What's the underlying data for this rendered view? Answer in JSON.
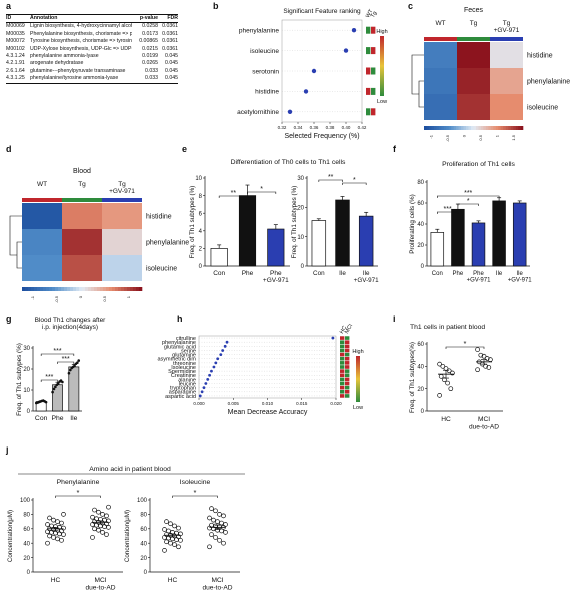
{
  "panel_letters": [
    "a",
    "b",
    "c",
    "d",
    "e",
    "f",
    "g",
    "h",
    "i",
    "j"
  ],
  "table_a": {
    "headers": [
      "ID",
      "Annotation",
      "p-value",
      "FDR"
    ],
    "rows": [
      [
        "M00069",
        "Lignin biosynthesis, 4-hydroxycinnamyl alcohol => lignin",
        "0.0258",
        "0.0361"
      ],
      [
        "M00035",
        "Phenylalanine biosynthesis, chorismate => phenylalanine",
        "0.0173",
        "0.0361"
      ],
      [
        "M00072",
        "Tyrosine biosynthesis, chorismate => tyrosine",
        "0.00865",
        "0.0361"
      ],
      [
        "M00102",
        "UDP-Xylose biosynthesis, UDP-Glc => UDP-Xyl => Xyl",
        "0.0215",
        "0.0361"
      ],
      [
        "4.3.1.24",
        "phenylalanine ammonia-lyase",
        "0.0199",
        "0.045"
      ],
      [
        "4.2.1.91",
        "arogenate dehydratase",
        "0.0265",
        "0.045"
      ],
      [
        "2.6.1.64",
        "glutamine---phenylpyruvate transaminase",
        "0.033",
        "0.045"
      ],
      [
        "4.3.1.25",
        "phenylalanine/tyrosine ammonia-lyase",
        "0.033",
        "0.045"
      ]
    ]
  },
  "colors": {
    "black": "#111111",
    "blue": "#2a3eb1",
    "gray": "#bbbbbb",
    "green": "#2e8b3c",
    "red": "#c0262c",
    "heat_high": "#8b1a1a",
    "heat_low": "#1f5c9e"
  },
  "chart_data": [
    {
      "id": "b",
      "type": "scatter",
      "title": "Significant Feature ranking",
      "xlabel": "Selected Frequency (%)",
      "categories": [
        "phenylalanine",
        "isoleucine",
        "serotonin",
        "histidine",
        "acetylornithine"
      ],
      "values": [
        0.41,
        0.4,
        0.36,
        0.35,
        0.33
      ],
      "xticks": [
        "0.32",
        "0.34",
        "0.36",
        "0.38",
        "0.40",
        "0.42"
      ],
      "xlim": [
        0.32,
        0.42
      ],
      "side_columns": [
        "WT",
        "Tg"
      ],
      "side_colors": [
        [
          "green",
          "red"
        ],
        [
          "green",
          "red"
        ],
        [
          "red",
          "green"
        ],
        [
          "red",
          "green"
        ],
        [
          "green",
          "red"
        ]
      ],
      "legend": {
        "high": "High",
        "low": "Low"
      }
    },
    {
      "id": "c",
      "type": "heatmap",
      "title": "Feces",
      "columns": [
        "WT",
        "Tg",
        "Tg\n+GV-971"
      ],
      "column_bar_colors": [
        "#c0262c",
        "#2e8b3c",
        "#2a3eb1"
      ],
      "rows": [
        "histidine",
        "phenylalanine",
        "isoleucine"
      ],
      "values": [
        [
          -1.0,
          1.6,
          0.1
        ],
        [
          -1.1,
          1.5,
          0.6
        ],
        [
          -1.2,
          1.4,
          0.8
        ]
      ],
      "colorbar_ticks": [
        "-1",
        "-0.5",
        "0",
        "0.5",
        "1",
        "1.5"
      ]
    },
    {
      "id": "d",
      "type": "heatmap",
      "title": "Blood",
      "columns": [
        "WT",
        "Tg",
        "Tg\n+GV-971"
      ],
      "column_bar_colors": [
        "#c0262c",
        "#2e8b3c",
        "#2a3eb1"
      ],
      "rows": [
        "histidine",
        "phenylalanine",
        "isoleucine"
      ],
      "values": [
        [
          -1.5,
          0.9,
          0.7
        ],
        [
          -0.9,
          1.4,
          0.2
        ],
        [
          -0.8,
          1.2,
          -0.2
        ]
      ],
      "colorbar_ticks": [
        "-1",
        "-0.5",
        "0",
        "0.5",
        "1"
      ]
    },
    {
      "id": "e1",
      "type": "bar",
      "title": "Differentiation of Th0 cells to Th1 cells",
      "ylabel": "Freq. of Th1 subtypes (%)",
      "categories": [
        "Con",
        "Phe",
        "Phe\n+GV-971"
      ],
      "values": [
        2,
        8,
        4.2
      ],
      "errors": [
        0.4,
        1.2,
        0.5
      ],
      "bar_colors": [
        "white",
        "black",
        "blue"
      ],
      "ylim": [
        0,
        10
      ],
      "yticks": [
        "0",
        "2",
        "4",
        "6",
        "8",
        "10"
      ],
      "significance": [
        {
          "from": 0,
          "to": 1,
          "label": "**"
        },
        {
          "from": 1,
          "to": 2,
          "label": "*"
        }
      ]
    },
    {
      "id": "e2",
      "type": "bar",
      "ylabel": "Freq. of Th1 subtypes (%)",
      "categories": [
        "Con",
        "Ile",
        "Ile\n+GV-971"
      ],
      "values": [
        15.5,
        22.5,
        17
      ],
      "errors": [
        0.6,
        1.2,
        1.3
      ],
      "bar_colors": [
        "white",
        "black",
        "blue"
      ],
      "ylim": [
        0,
        30
      ],
      "yticks": [
        "0",
        "10",
        "20",
        "30"
      ],
      "significance": [
        {
          "from": 0,
          "to": 1,
          "label": "**"
        },
        {
          "from": 1,
          "to": 2,
          "label": "*"
        }
      ]
    },
    {
      "id": "f",
      "type": "bar",
      "title": "Proliferation of Th1 cells",
      "ylabel": "Proliferating cells (%)",
      "categories": [
        "Con",
        "Phe",
        "Phe\n+GV-971",
        "Ile",
        "Ile\n+GV-971"
      ],
      "values": [
        32,
        54,
        41,
        62,
        60
      ],
      "errors": [
        3,
        5,
        2,
        3,
        2
      ],
      "bar_colors": [
        "white",
        "black",
        "blue",
        "black",
        "blue"
      ],
      "ylim": [
        0,
        80
      ],
      "yticks": [
        "0",
        "20",
        "40",
        "60",
        "80"
      ],
      "significance": [
        {
          "from": 0,
          "to": 1,
          "label": "***"
        },
        {
          "from": 1,
          "to": 2,
          "label": "*"
        },
        {
          "from": 0,
          "to": 3,
          "label": "***"
        }
      ]
    },
    {
      "id": "g",
      "type": "bar",
      "title": "Blood Th1 changes after\ni.p. injection(4days)",
      "ylabel": "Freq. of Th1 subtypes (%)",
      "categories": [
        "Con",
        "Phe",
        "Ile"
      ],
      "values": [
        4.5,
        12.5,
        21
      ],
      "errors": [
        0.4,
        1.2,
        1.2
      ],
      "points": [
        [
          3.8,
          4.0,
          4.3,
          4.5,
          4.8,
          5.0,
          4.6,
          4.2
        ],
        [
          9,
          10.5,
          11.5,
          12.5,
          13,
          14,
          14.5,
          13.8
        ],
        [
          18,
          19.5,
          20.5,
          21,
          21.5,
          22.5,
          23,
          24
        ]
      ],
      "bar_colors": [
        "white",
        "gray",
        "gray"
      ],
      "ylim": [
        0,
        30
      ],
      "yticks": [
        "0",
        "10",
        "20",
        "30"
      ],
      "significance": [
        {
          "from": 0,
          "to": 1,
          "label": "***"
        },
        {
          "from": 1,
          "to": 2,
          "label": "***"
        },
        {
          "from": 0,
          "to": 2,
          "label": "***"
        }
      ]
    },
    {
      "id": "h",
      "type": "scatter",
      "xlabel": "Mean Decrease Accuracy",
      "categories": [
        "citrulline",
        "phenylalanine",
        "glutamic acid",
        "serine",
        "glutamine",
        "asymmetric dim",
        "threonine",
        "Isoleucine",
        "Spermidine",
        "Creatinine",
        "alanine",
        "leucine",
        "tryptophan",
        "asparagine",
        "aspartic acid"
      ],
      "values": [
        0.0215,
        0.0045,
        0.0042,
        0.0038,
        0.0035,
        0.003,
        0.0027,
        0.0024,
        0.002,
        0.0017,
        0.0014,
        0.0011,
        0.0008,
        0.0005,
        0.0002
      ],
      "xticks": [
        "0.000",
        "0.005",
        "0.010",
        "0.015",
        "0.020"
      ],
      "xlim": [
        0,
        0.022
      ],
      "side_columns": [
        "HC",
        "MCI"
      ],
      "side_colors": [
        [
          "red",
          "green"
        ],
        [
          "green",
          "red"
        ],
        [
          "green",
          "red"
        ],
        [
          "green",
          "red"
        ],
        [
          "red",
          "green"
        ],
        [
          "green",
          "red"
        ],
        [
          "green",
          "red"
        ],
        [
          "green",
          "red"
        ],
        [
          "red",
          "green"
        ],
        [
          "red",
          "green"
        ],
        [
          "green",
          "red"
        ],
        [
          "green",
          "red"
        ],
        [
          "red",
          "green"
        ],
        [
          "green",
          "red"
        ],
        [
          "red",
          "green"
        ]
      ],
      "legend": {
        "high": "High",
        "low": "Low"
      }
    },
    {
      "id": "i",
      "type": "scatter",
      "title": "Th1 cells in patient blood",
      "ylabel": "Freq. of Th1 subtypes(%)",
      "categories": [
        "HC",
        "MCI\ndue-to-AD"
      ],
      "points": [
        [
          14,
          20,
          25,
          28,
          31,
          34,
          36,
          38,
          40,
          42
        ],
        [
          37,
          39,
          40,
          42,
          44,
          46,
          47,
          49,
          50,
          55
        ]
      ],
      "means": [
        33,
        44
      ],
      "errors": [
        3.5,
        2
      ],
      "ylim": [
        0,
        60
      ],
      "yticks": [
        "0",
        "20",
        "40",
        "60"
      ],
      "significance": [
        {
          "from": 0,
          "to": 1,
          "label": "*"
        }
      ]
    },
    {
      "id": "j1",
      "type": "scatter",
      "title": "Phenylalanine",
      "ylabel": "Concentration(μM)",
      "categories": [
        "HC",
        "MCI\ndue-to-AD"
      ],
      "points": [
        [
          40,
          44,
          46,
          48,
          50,
          52,
          53,
          54,
          55,
          56,
          57,
          58,
          59,
          60,
          61,
          62,
          63,
          64,
          66,
          68,
          70,
          72,
          75,
          80
        ],
        [
          48,
          52,
          55,
          58,
          60,
          62,
          63,
          64,
          65,
          66,
          67,
          68,
          69,
          70,
          71,
          72,
          73,
          74,
          76,
          78,
          80,
          83,
          86,
          90
        ]
      ],
      "means": [
        60,
        69
      ],
      "errors": [
        2,
        2
      ],
      "ylim": [
        0,
        100
      ],
      "yticks": [
        "0",
        "20",
        "40",
        "60",
        "80",
        "100"
      ],
      "significance": [
        {
          "from": 0,
          "to": 1,
          "label": "*"
        }
      ]
    },
    {
      "id": "j2",
      "type": "scatter",
      "title": "Isoleucine",
      "ylabel": "Concentration(μM)",
      "categories": [
        "HC",
        "MCI\ndue-to-AD"
      ],
      "points": [
        [
          30,
          35,
          38,
          40,
          42,
          44,
          45,
          46,
          47,
          48,
          49,
          50,
          51,
          52,
          53,
          54,
          55,
          57,
          59,
          61,
          64,
          67,
          70
        ],
        [
          35,
          40,
          44,
          48,
          52,
          55,
          57,
          58,
          60,
          61,
          62,
          63,
          64,
          65,
          66,
          68,
          70,
          72,
          75,
          78,
          80,
          85,
          88
        ]
      ],
      "means": [
        51,
        62
      ],
      "errors": [
        2,
        3
      ],
      "ylim": [
        0,
        100
      ],
      "yticks": [
        "0",
        "20",
        "40",
        "60",
        "80",
        "100"
      ],
      "significance": [
        {
          "from": 0,
          "to": 1,
          "label": "*"
        }
      ]
    }
  ],
  "figure_titles": {
    "j": "Amino acid in patient blood"
  }
}
